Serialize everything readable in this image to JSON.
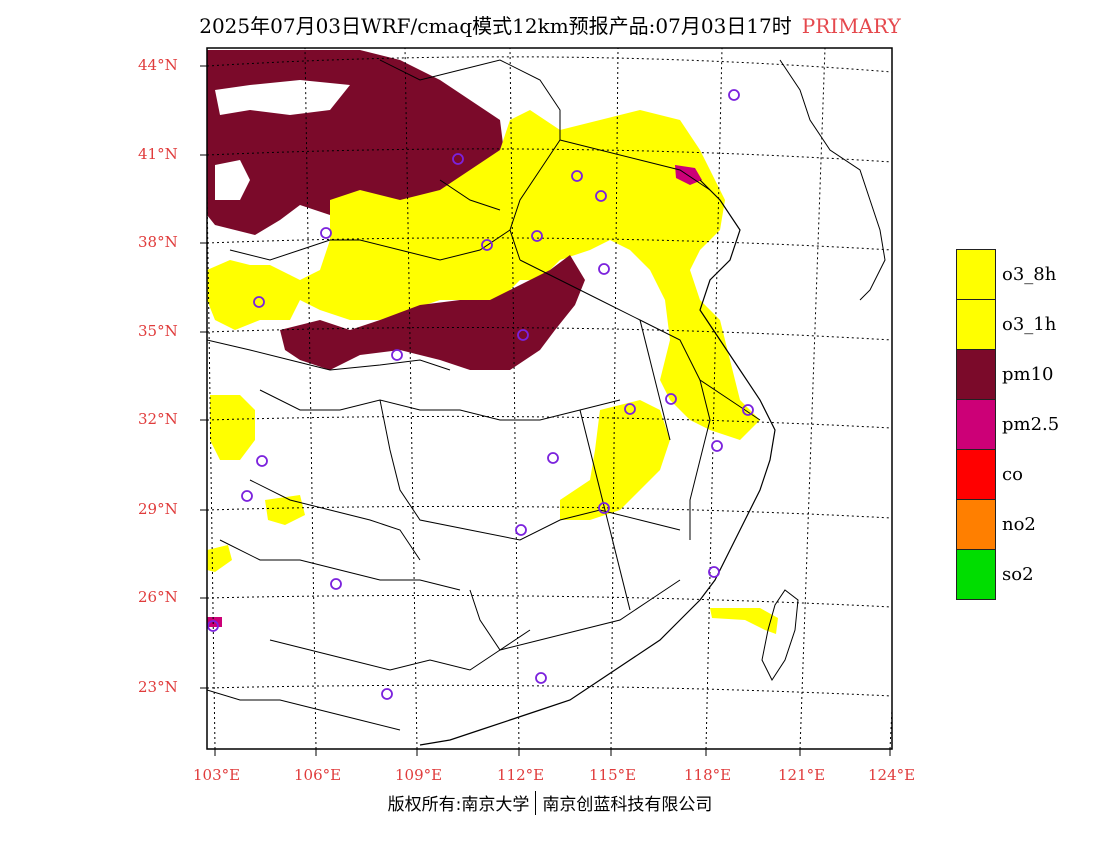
{
  "title": {
    "main": "2025年07月03日WRF/cmaq模式12km预报产品:07月03日17时",
    "tag": "PRIMARY"
  },
  "map": {
    "lat_labels": [
      "44°N",
      "41°N",
      "38°N",
      "35°N",
      "32°N",
      "29°N",
      "26°N",
      "23°N"
    ],
    "lon_labels": [
      "103°E",
      "106°E",
      "109°E",
      "112°E",
      "115°E",
      "118°E",
      "121°E",
      "124°E"
    ],
    "region": "East and Central China",
    "layers": [
      "province boundaries",
      "coastline",
      "monitoring station circles",
      "primary pollutant grid"
    ]
  },
  "legend": {
    "items": [
      {
        "label": "o3_8h",
        "color": "#ffff00"
      },
      {
        "label": "o3_1h",
        "color": "#ffff00"
      },
      {
        "label": "pm10",
        "color": "#7b0a2a"
      },
      {
        "label": "pm2.5",
        "color": "#cc0077"
      },
      {
        "label": "co",
        "color": "#ff0000"
      },
      {
        "label": "no2",
        "color": "#ff7f00"
      },
      {
        "label": "so2",
        "color": "#00dd00"
      }
    ]
  },
  "colors": {
    "axis_label": "#e03c3c",
    "station_circle": "#7b22dd",
    "boundary": "#000000",
    "grid": "#000000"
  },
  "footer": {
    "left": "版权所有:南京大学",
    "right": "南京创蓝科技有限公司"
  }
}
